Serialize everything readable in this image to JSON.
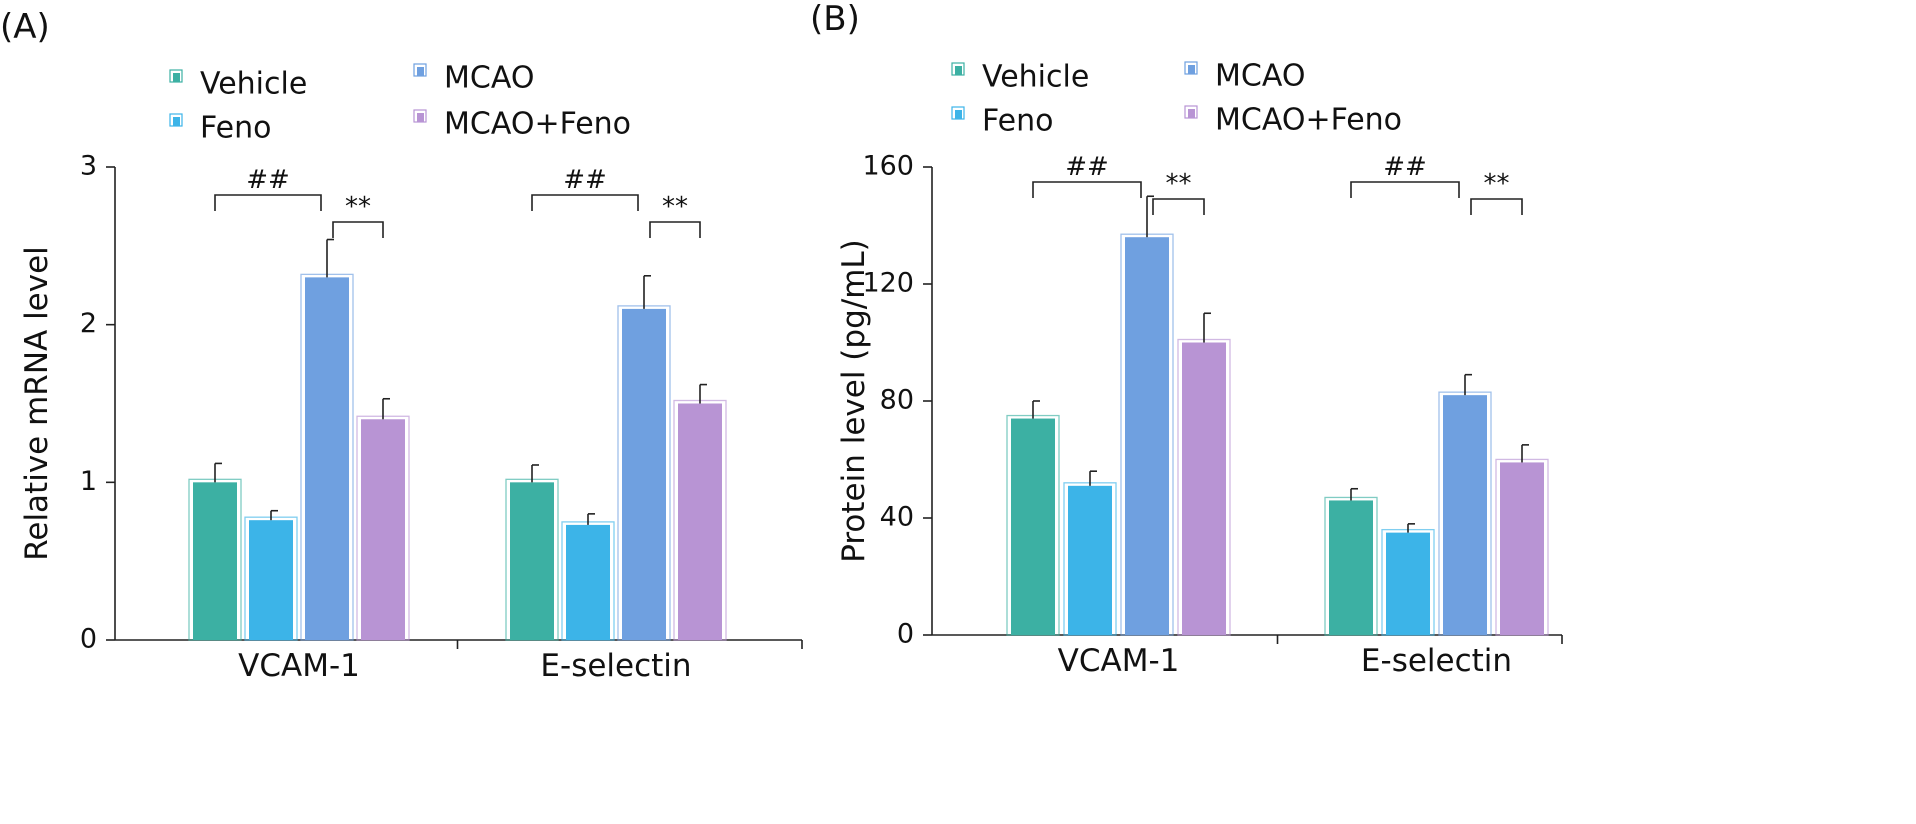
{
  "chart_data": [
    {
      "panel": "(A)",
      "type": "bar",
      "title": "",
      "xlabel": "",
      "ylabel": "Relative mRNA level",
      "ylim": [
        0,
        3
      ],
      "yticks": [
        "0",
        "1",
        "2",
        "3"
      ],
      "categories": [
        "VCAM-1",
        "E-selectin"
      ],
      "series": [
        {
          "name": "Vehicle",
          "color": "#3cb0a3",
          "values": [
            1.0,
            1.0
          ],
          "errors": [
            0.12,
            0.11
          ]
        },
        {
          "name": "Feno",
          "color": "#3cb4e8",
          "values": [
            0.76,
            0.73
          ],
          "errors": [
            0.06,
            0.07
          ]
        },
        {
          "name": "MCAO",
          "color": "#6fa0e0",
          "values": [
            2.3,
            2.1
          ],
          "errors": [
            0.24,
            0.21
          ]
        },
        {
          "name": "MCAO+Feno",
          "color": "#b894d4",
          "values": [
            1.4,
            1.5
          ],
          "errors": [
            0.13,
            0.12
          ]
        }
      ],
      "significance": [
        {
          "category": "VCAM-1",
          "from": "Vehicle",
          "to": "MCAO",
          "label": "##"
        },
        {
          "category": "VCAM-1",
          "from": "MCAO",
          "to": "MCAO+Feno",
          "label": "**"
        },
        {
          "category": "E-selectin",
          "from": "Vehicle",
          "to": "MCAO",
          "label": "##"
        },
        {
          "category": "E-selectin",
          "from": "MCAO",
          "to": "MCAO+Feno",
          "label": "**"
        }
      ]
    },
    {
      "panel": "(B)",
      "type": "bar",
      "title": "",
      "xlabel": "",
      "ylabel": "Protein level (pg/mL)",
      "ylim": [
        0,
        160
      ],
      "yticks": [
        "0",
        "40",
        "80",
        "120",
        "160"
      ],
      "categories": [
        "VCAM-1",
        "E-selectin"
      ],
      "series": [
        {
          "name": "Vehicle",
          "color": "#3cb0a3",
          "values": [
            74,
            46
          ],
          "errors": [
            6,
            4
          ]
        },
        {
          "name": "Feno",
          "color": "#3cb4e8",
          "values": [
            51,
            35
          ],
          "errors": [
            5,
            3
          ]
        },
        {
          "name": "MCAO",
          "color": "#6fa0e0",
          "values": [
            136,
            82
          ],
          "errors": [
            14,
            7
          ]
        },
        {
          "name": "MCAO+Feno",
          "color": "#b894d4",
          "values": [
            100,
            59
          ],
          "errors": [
            10,
            6
          ]
        }
      ],
      "significance": [
        {
          "category": "VCAM-1",
          "from": "Vehicle",
          "to": "MCAO",
          "label": "##"
        },
        {
          "category": "VCAM-1",
          "from": "MCAO",
          "to": "MCAO+Feno",
          "label": "**"
        },
        {
          "category": "E-selectin",
          "from": "Vehicle",
          "to": "MCAO",
          "label": "##"
        },
        {
          "category": "E-selectin",
          "from": "MCAO",
          "to": "MCAO+Feno",
          "label": "**"
        }
      ]
    }
  ]
}
